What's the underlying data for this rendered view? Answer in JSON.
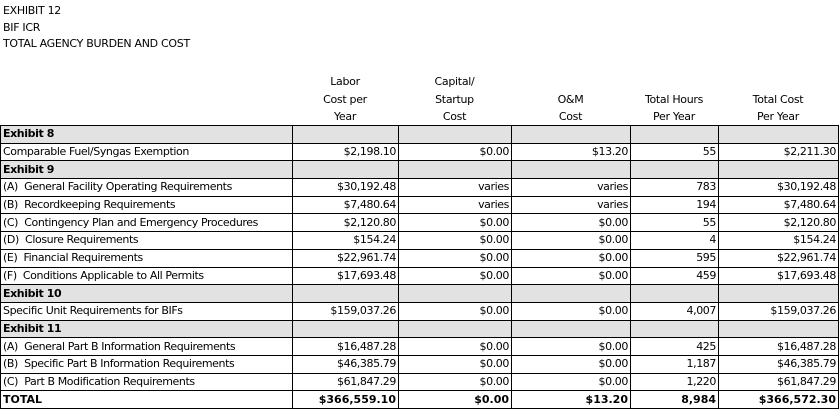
{
  "titles": [
    "EXHIBIT 12",
    "BIF ICR",
    "TOTAL AGENCY BURDEN AND COST"
  ],
  "columns": [
    [
      "Labor",
      "Cost per",
      "Year"
    ],
    [
      "Capital/",
      "Startup",
      "Cost"
    ],
    [
      "",
      "O&M",
      "Cost"
    ],
    [
      "",
      "Total Hours",
      "Per Year"
    ],
    [
      "",
      "Total Cost",
      "Per Year"
    ]
  ],
  "rows": [
    {
      "type": "section",
      "label": "Exhibit 8"
    },
    {
      "type": "data",
      "label": "Comparable Fuel/Syngas Exemption",
      "values": [
        "$2,198.10",
        "$0.00",
        "$13.20",
        "55",
        "$2,211.30"
      ]
    },
    {
      "type": "section",
      "label": "Exhibit 9"
    },
    {
      "type": "data",
      "label": "(A)  General Facility Operating Requirements",
      "values": [
        "$30,192.48",
        "varies",
        "varies",
        "783",
        "$30,192.48"
      ]
    },
    {
      "type": "data",
      "label": "(B)  Recordkeeping Requirements",
      "values": [
        "$7,480.64",
        "varies",
        "varies",
        "194",
        "$7,480.64"
      ]
    },
    {
      "type": "data",
      "label": "(C)  Contingency Plan and Emergency Procedures",
      "values": [
        "$2,120.80",
        "$0.00",
        "$0.00",
        "55",
        "$2,120.80"
      ]
    },
    {
      "type": "data",
      "label": "(D)  Closure Requirements",
      "values": [
        "$154.24",
        "$0.00",
        "$0.00",
        "4",
        "$154.24"
      ]
    },
    {
      "type": "data",
      "label": "(E)  Financial Requirements",
      "values": [
        "$22,961.74",
        "$0.00",
        "$0.00",
        "595",
        "$22,961.74"
      ]
    },
    {
      "type": "data",
      "label": "(F)  Conditions Applicable to All Permits",
      "values": [
        "$17,693.48",
        "$0.00",
        "$0.00",
        "459",
        "$17,693.48"
      ]
    },
    {
      "type": "section",
      "label": "Exhibit 10"
    },
    {
      "type": "data",
      "label": "Specific Unit Requirements for BIFs",
      "values": [
        "$159,037.26",
        "$0.00",
        "$0.00",
        "4,007",
        "$159,037.26"
      ]
    },
    {
      "type": "section",
      "label": "Exhibit 11"
    },
    {
      "type": "data",
      "label": "(A)  General Part B Information Requirements",
      "values": [
        "$16,487.28",
        "$0.00",
        "$0.00",
        "425",
        "$16,487.28"
      ]
    },
    {
      "type": "data",
      "label": "(B)  Specific Part B Information Requirements",
      "values": [
        "$46,385.79",
        "$0.00",
        "$0.00",
        "1,187",
        "$46,385.79"
      ]
    },
    {
      "type": "data",
      "label": "(C)  Part B Modification Requirements",
      "values": [
        "$61,847.29",
        "$0.00",
        "$0.00",
        "1,220",
        "$61,847.29"
      ]
    },
    {
      "type": "total",
      "label": "TOTAL",
      "values": [
        "$366,559.10",
        "$0.00",
        "$13.20",
        "8,984",
        "$366,572.30"
      ]
    }
  ]
}
